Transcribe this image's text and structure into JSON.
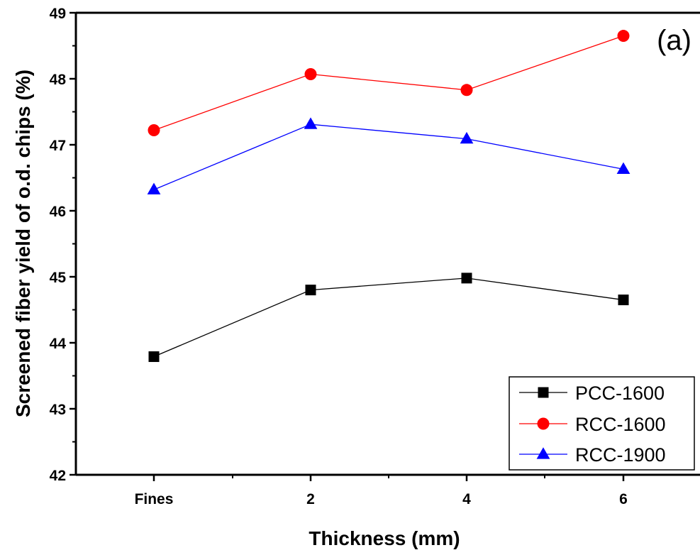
{
  "chart_data": {
    "type": "line",
    "categories": [
      "Fines",
      "2",
      "4",
      "6"
    ],
    "xlabel": "Thickness (mm)",
    "ylabel": "Screened fiber yield of o.d. chips (%)",
    "ylim": [
      42,
      49
    ],
    "yticks": [
      "42",
      "43",
      "44",
      "45",
      "46",
      "47",
      "48",
      "49"
    ],
    "annotation": "(a)",
    "grid": false,
    "legend_position": "bottom-right",
    "series": [
      {
        "name": "PCC-1600",
        "values": [
          43.79,
          44.8,
          44.98,
          44.65
        ],
        "color": "#000000",
        "marker": "square"
      },
      {
        "name": "RCC-1600",
        "values": [
          47.22,
          48.07,
          47.83,
          48.65
        ],
        "color": "#ff0000",
        "marker": "circle"
      },
      {
        "name": "RCC-1900",
        "values": [
          46.32,
          47.31,
          47.09,
          46.63
        ],
        "color": "#0000ff",
        "marker": "triangle"
      }
    ]
  }
}
